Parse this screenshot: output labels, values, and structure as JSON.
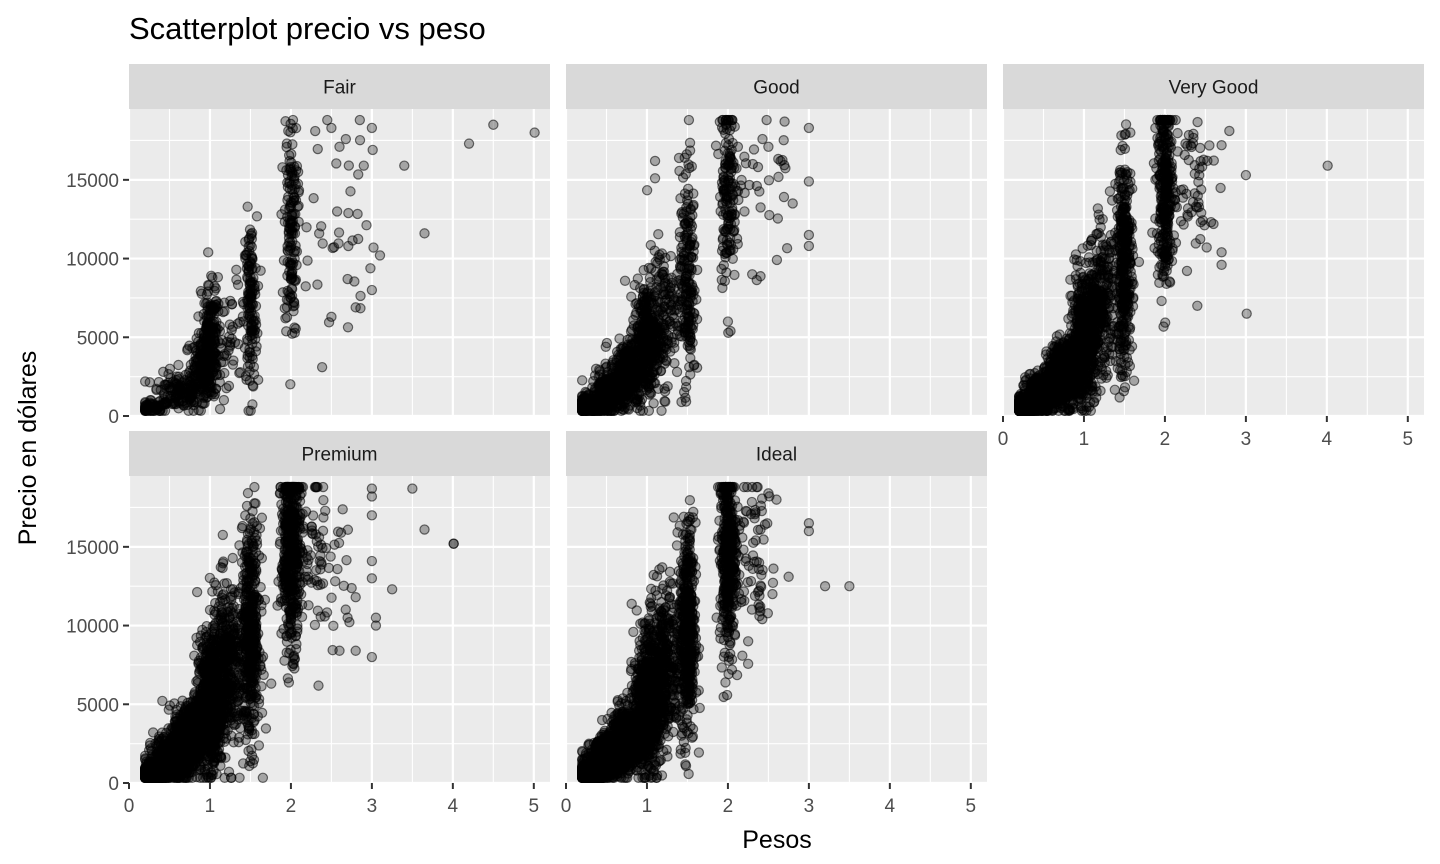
{
  "chart_data": {
    "type": "scatter",
    "title": "Scatterplot precio vs peso",
    "xlabel": "Pesos",
    "ylabel": "Precio en dólares",
    "xlim": [
      0,
      5.2
    ],
    "ylim": [
      0,
      19500
    ],
    "x_ticks": [
      0,
      1,
      2,
      3,
      4,
      5
    ],
    "y_ticks": [
      0,
      5000,
      10000,
      15000
    ],
    "grid": true,
    "facet_layout": "2 rows x 3 columns",
    "point_color": "#000000",
    "point_alpha": 0.3,
    "panel_background": "#ebebeb",
    "strip_background": "#d9d9d9",
    "facets": [
      {
        "name": "Fair",
        "clusters": [
          [
            0.3,
            500,
            0.1,
            250,
            60
          ],
          [
            0.6,
            1500,
            0.15,
            600,
            120
          ],
          [
            0.9,
            3000,
            0.1,
            1000,
            150
          ],
          [
            1.0,
            4500,
            0.05,
            1800,
            180
          ],
          [
            1.5,
            7000,
            0.04,
            2800,
            140
          ],
          [
            2.0,
            12000,
            0.04,
            3500,
            150
          ],
          [
            2.5,
            12000,
            0.25,
            4000,
            40
          ],
          [
            1.2,
            5000,
            0.15,
            2000,
            60
          ]
        ],
        "outliers": [
          [
            3.0,
            18300
          ],
          [
            3.01,
            16900
          ],
          [
            3.02,
            10700
          ],
          [
            3.0,
            8000
          ],
          [
            3.1,
            10200
          ],
          [
            3.4,
            15900
          ],
          [
            3.65,
            11600
          ],
          [
            4.2,
            17300
          ],
          [
            4.5,
            18500
          ],
          [
            5.01,
            18000
          ],
          [
            2.3,
            18100
          ],
          [
            2.5,
            18300
          ],
          [
            2.6,
            17100
          ],
          [
            2.9,
            15900
          ],
          [
            2.7,
            8700
          ],
          [
            2.8,
            6900
          ],
          [
            2.5,
            6300
          ]
        ]
      },
      {
        "name": "Good",
        "clusters": [
          [
            0.3,
            600,
            0.1,
            300,
            250
          ],
          [
            0.55,
            1500,
            0.12,
            600,
            300
          ],
          [
            0.75,
            2800,
            0.1,
            1000,
            280
          ],
          [
            1.0,
            4800,
            0.08,
            1800,
            350
          ],
          [
            1.2,
            6500,
            0.1,
            2200,
            150
          ],
          [
            1.5,
            9000,
            0.05,
            3500,
            200
          ],
          [
            2.0,
            14500,
            0.05,
            3000,
            160
          ],
          [
            2.4,
            14500,
            0.2,
            3000,
            30
          ]
        ],
        "outliers": [
          [
            3.0,
            18300
          ],
          [
            3.0,
            14900
          ],
          [
            3.0,
            11500
          ],
          [
            3.0,
            10800
          ],
          [
            2.8,
            13500
          ],
          [
            2.65,
            16200
          ],
          [
            2.5,
            17100
          ],
          [
            2.7,
            18700
          ],
          [
            2.3,
            9000
          ],
          [
            2.0,
            6000
          ],
          [
            1.1,
            15100
          ],
          [
            1.1,
            16200
          ]
        ]
      },
      {
        "name": "Very Good",
        "clusters": [
          [
            0.3,
            600,
            0.08,
            300,
            450
          ],
          [
            0.5,
            1500,
            0.1,
            600,
            450
          ],
          [
            0.75,
            2700,
            0.1,
            1000,
            450
          ],
          [
            1.0,
            4800,
            0.08,
            1800,
            550
          ],
          [
            1.2,
            7000,
            0.1,
            2200,
            300
          ],
          [
            1.5,
            9500,
            0.05,
            3500,
            350
          ],
          [
            2.0,
            14500,
            0.05,
            3000,
            300
          ],
          [
            2.3,
            14500,
            0.15,
            3000,
            60
          ]
        ],
        "outliers": [
          [
            3.01,
            6500
          ],
          [
            3.0,
            15300
          ],
          [
            4.01,
            15900
          ],
          [
            2.7,
            10400
          ],
          [
            2.7,
            9600
          ],
          [
            2.7,
            17200
          ],
          [
            2.6,
            12200
          ],
          [
            2.4,
            7000
          ]
        ]
      },
      {
        "name": "Premium",
        "clusters": [
          [
            0.3,
            600,
            0.08,
            300,
            500
          ],
          [
            0.55,
            1600,
            0.12,
            700,
            550
          ],
          [
            0.75,
            2900,
            0.1,
            1100,
            500
          ],
          [
            1.0,
            5000,
            0.08,
            2000,
            650
          ],
          [
            1.2,
            7500,
            0.1,
            2500,
            400
          ],
          [
            1.5,
            9500,
            0.06,
            3500,
            450
          ],
          [
            2.0,
            14800,
            0.06,
            3000,
            450
          ],
          [
            2.3,
            15000,
            0.2,
            3000,
            100
          ]
        ],
        "outliers": [
          [
            3.0,
            18700
          ],
          [
            3.0,
            18200
          ],
          [
            3.0,
            17000
          ],
          [
            3.0,
            14100
          ],
          [
            3.0,
            13000
          ],
          [
            3.0,
            8000
          ],
          [
            3.05,
            10000
          ],
          [
            3.05,
            10500
          ],
          [
            3.25,
            12300
          ],
          [
            3.5,
            18700
          ],
          [
            3.65,
            16100
          ],
          [
            4.01,
            15200
          ],
          [
            4.01,
            15200
          ],
          [
            2.8,
            8400
          ],
          [
            2.6,
            8400
          ],
          [
            2.7,
            10500
          ],
          [
            2.8,
            11800
          ]
        ]
      },
      {
        "name": "Ideal",
        "clusters": [
          [
            0.3,
            600,
            0.08,
            300,
            550
          ],
          [
            0.5,
            1500,
            0.1,
            600,
            550
          ],
          [
            0.75,
            2800,
            0.1,
            1000,
            550
          ],
          [
            1.0,
            5000,
            0.08,
            2000,
            650
          ],
          [
            1.2,
            7500,
            0.1,
            2500,
            400
          ],
          [
            1.5,
            9500,
            0.05,
            3500,
            450
          ],
          [
            2.0,
            14500,
            0.05,
            3000,
            400
          ],
          [
            2.3,
            14500,
            0.15,
            3000,
            70
          ]
        ],
        "outliers": [
          [
            3.0,
            16500
          ],
          [
            3.0,
            16000
          ],
          [
            3.2,
            12500
          ],
          [
            3.5,
            12500
          ],
          [
            2.75,
            13100
          ],
          [
            2.55,
            12000
          ],
          [
            2.25,
            9000
          ],
          [
            2.05,
            7200
          ],
          [
            2.3,
            18800
          ],
          [
            2.6,
            18000
          ],
          [
            2.5,
            18400
          ]
        ]
      }
    ]
  }
}
